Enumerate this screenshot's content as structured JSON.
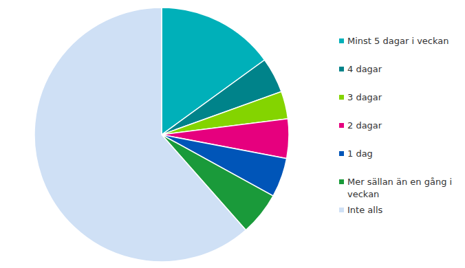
{
  "chart_data": {
    "type": "pie",
    "categories": [
      "Minst 5 dagar i veckan",
      "4 dagar",
      "3 dagar",
      "2 dagar",
      "1 dag",
      "Mer sällan än en gång i veckan",
      "Inte alls"
    ],
    "values": [
      15,
      4.5,
      3.5,
      5,
      5,
      5.5,
      61.5
    ],
    "colors": [
      "#00b0b9",
      "#00838a",
      "#84d400",
      "#e6007e",
      "#0055b8",
      "#1a9a3a",
      "#cfe0f5"
    ],
    "legend": "right"
  }
}
